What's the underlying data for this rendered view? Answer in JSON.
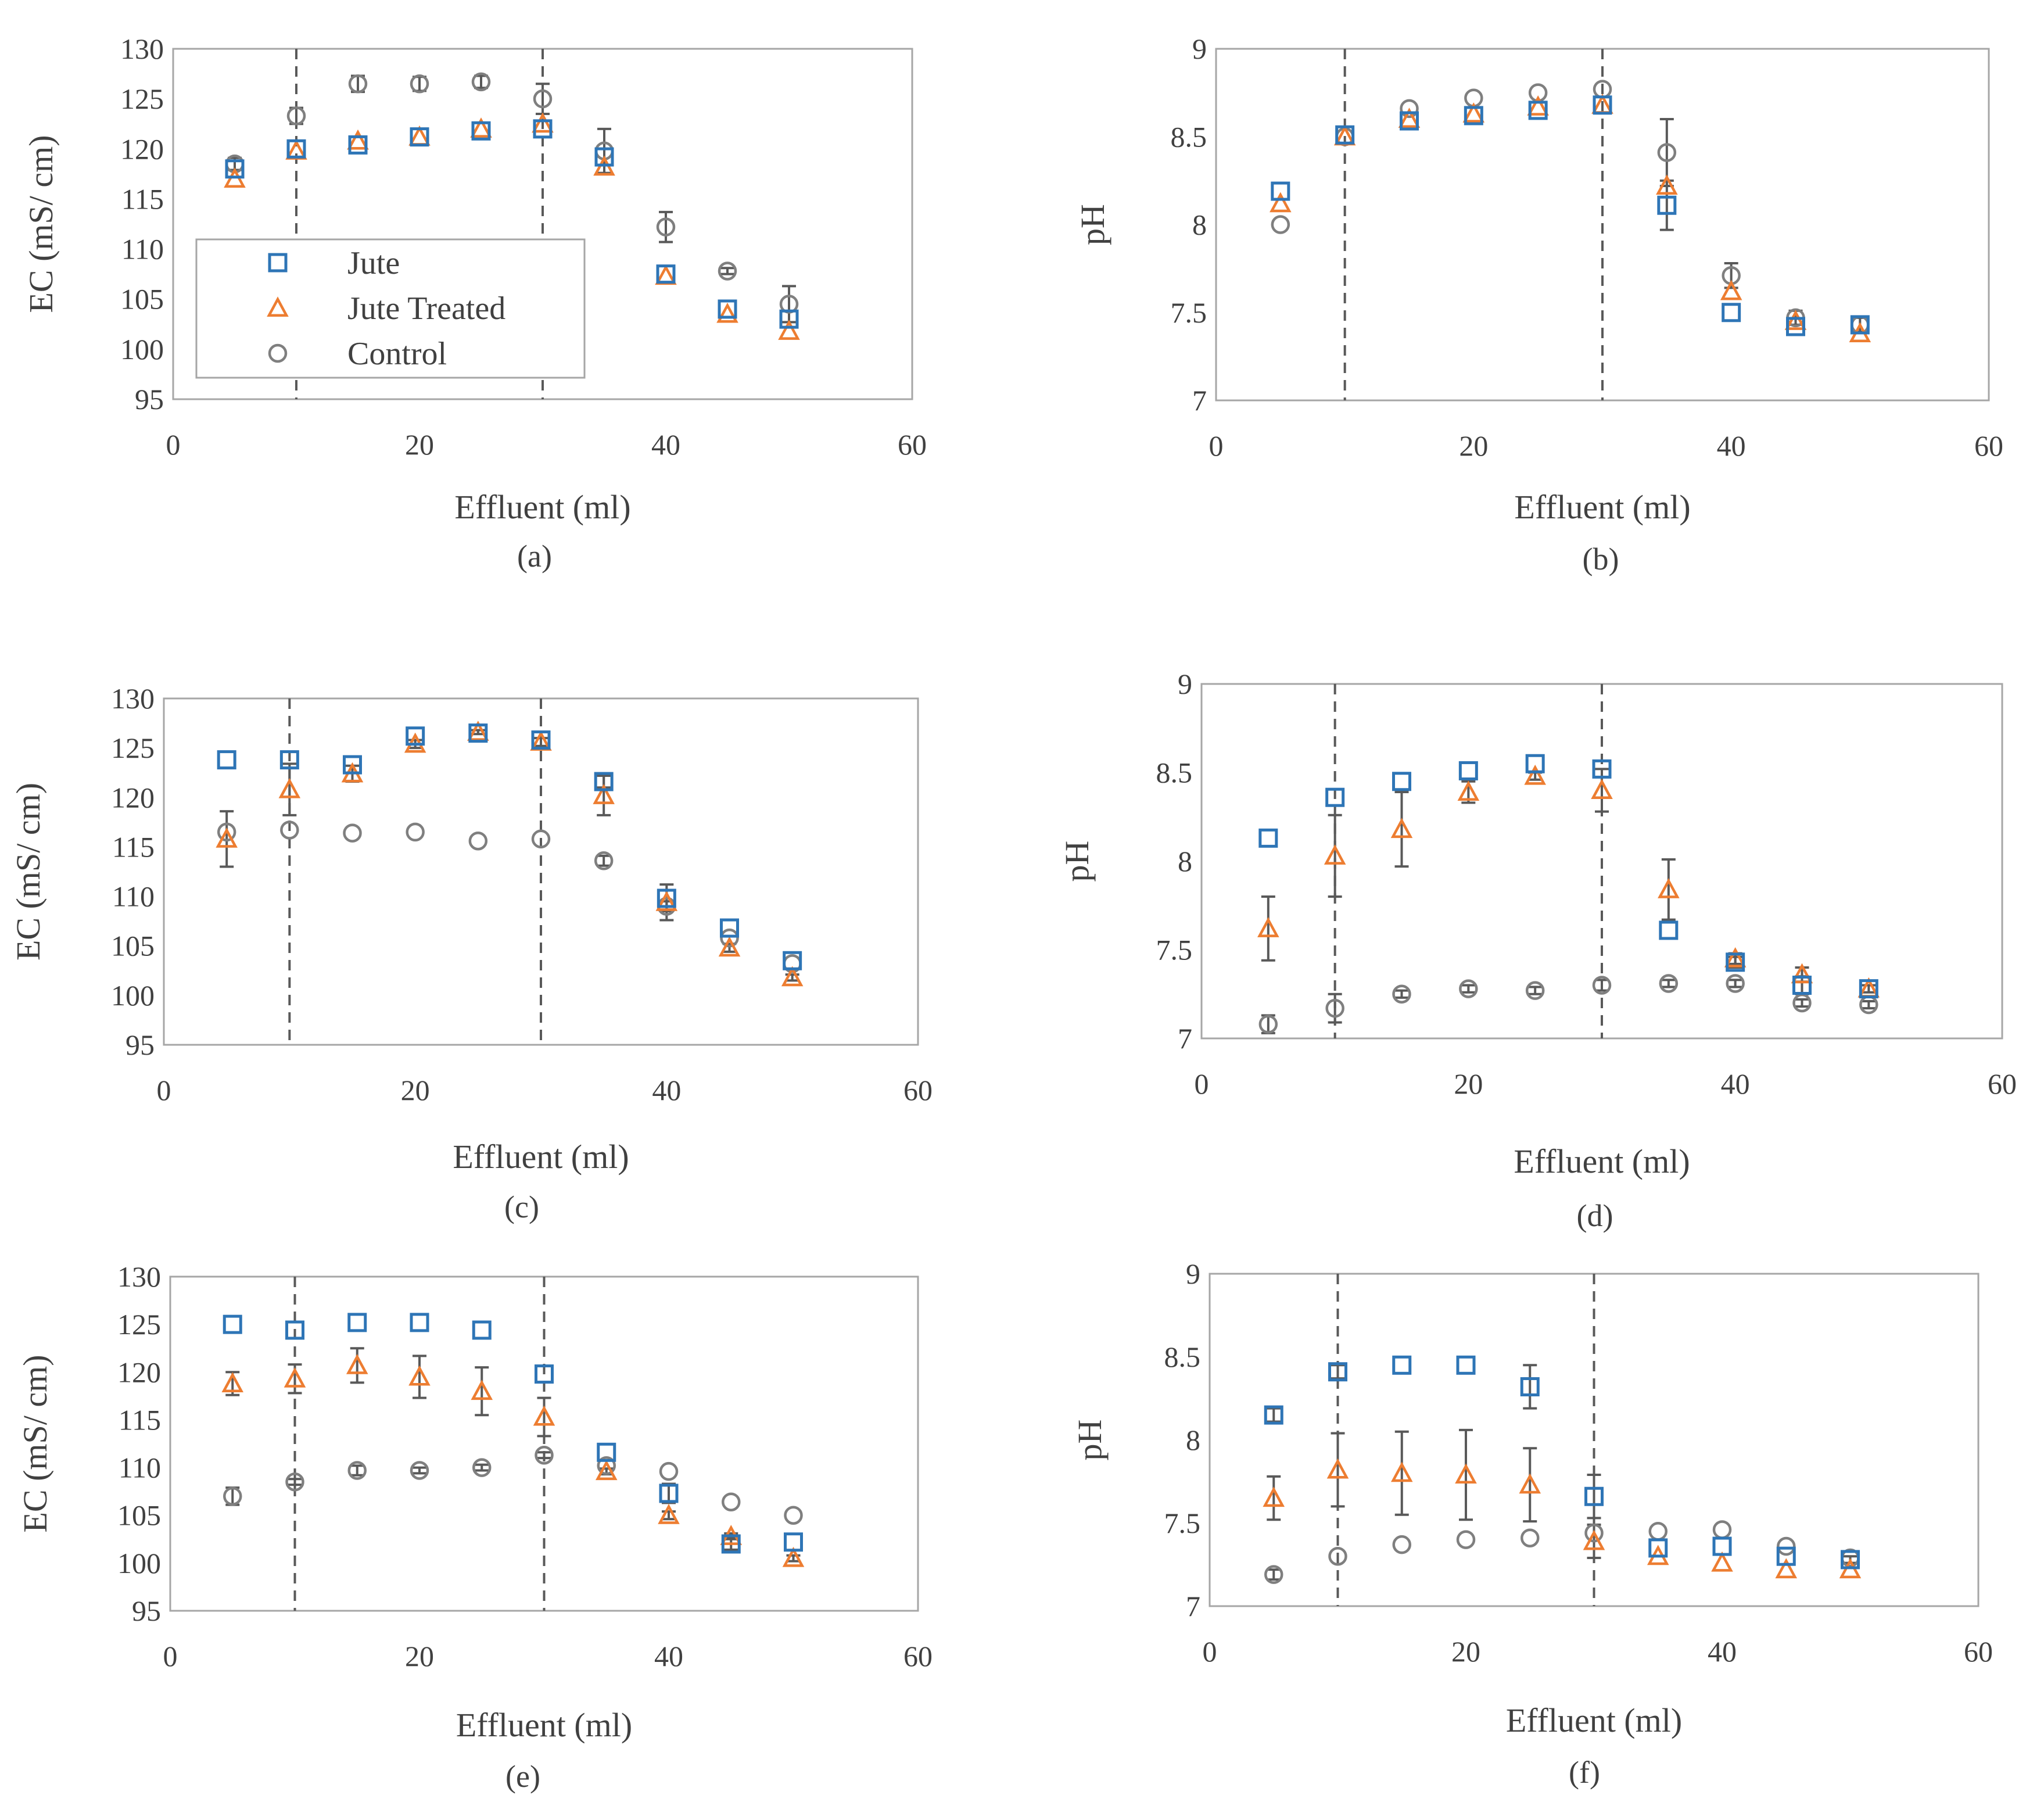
{
  "figure": {
    "captions": [
      "(a)",
      "(b)",
      "(c)",
      "(d)",
      "(e)",
      "(f)"
    ]
  },
  "colors": {
    "jute": "#2E75B6",
    "jute_treated": "#ED7D31",
    "control": "#7F7F7F",
    "axes": "#A6A6A6",
    "text": "#404040",
    "dashed": "#595959"
  },
  "legend": {
    "entries": [
      {
        "label": "Jute",
        "marker": "square"
      },
      {
        "label": "Jute Treated",
        "marker": "triangle"
      },
      {
        "label": "Control",
        "marker": "circle"
      }
    ]
  },
  "chart_data": [
    {
      "id": "a",
      "caption": "(a)",
      "type": "scatter",
      "xlabel": "Effluent (ml)",
      "ylabel": "EC (mS/ cm)",
      "xlim": [
        0,
        60
      ],
      "ylim": [
        95,
        130
      ],
      "xticks": [
        0,
        20,
        40,
        60
      ],
      "yticks": [
        95,
        100,
        105,
        110,
        115,
        120,
        125,
        130
      ],
      "ytick_labels": [
        "95",
        "100",
        "105",
        "110",
        "115",
        "120",
        "125",
        "130"
      ],
      "xtick_labels": [
        "0",
        "20",
        "40",
        "60"
      ],
      "vlines": [
        10,
        30
      ],
      "legend": true,
      "x": [
        5,
        10,
        15,
        20,
        25,
        30,
        35,
        40,
        45,
        50
      ],
      "series": [
        {
          "name": "Jute",
          "marker": "square",
          "values": [
            118,
            120,
            120.4,
            121.2,
            121.8,
            122,
            119.2,
            107.5,
            104,
            103
          ],
          "errors": [
            0,
            0,
            0,
            0,
            0,
            0,
            0,
            0,
            0,
            0
          ]
        },
        {
          "name": "Jute Treated",
          "marker": "triangle",
          "values": [
            117,
            119.8,
            120.8,
            121.2,
            122,
            122.5,
            118.2,
            107.3,
            103.5,
            101.8
          ],
          "errors": [
            0,
            0,
            0,
            0,
            0,
            0,
            0,
            0,
            0,
            0
          ]
        },
        {
          "name": "Control",
          "marker": "circle",
          "values": [
            118.5,
            123.3,
            126.5,
            126.5,
            126.7,
            125,
            119.8,
            112.2,
            107.8,
            104.5
          ],
          "errors": [
            0.6,
            0.8,
            0.8,
            0.7,
            0.6,
            1.5,
            2.2,
            1.5,
            0.3,
            1.8
          ]
        }
      ]
    },
    {
      "id": "b",
      "caption": "(b)",
      "type": "scatter",
      "xlabel": "Effluent (ml)",
      "ylabel": "pH",
      "xlim": [
        0,
        60
      ],
      "ylim": [
        7,
        9
      ],
      "xticks": [
        0,
        20,
        40,
        60
      ],
      "yticks": [
        7,
        7.5,
        8,
        8.5,
        9
      ],
      "ytick_labels": [
        "7",
        "7.5",
        "8",
        "8.5",
        "9"
      ],
      "xtick_labels": [
        "0",
        "20",
        "40",
        "60"
      ],
      "vlines": [
        10,
        30
      ],
      "legend": false,
      "x": [
        5,
        10,
        15,
        20,
        25,
        30,
        35,
        40,
        45,
        50
      ],
      "series": [
        {
          "name": "Jute",
          "marker": "square",
          "values": [
            8.19,
            8.51,
            8.59,
            8.62,
            8.65,
            8.68,
            8.11,
            7.5,
            7.42,
            7.43
          ],
          "errors": [
            0,
            0,
            0,
            0,
            0,
            0,
            0.14,
            0,
            0,
            0
          ]
        },
        {
          "name": "Jute Treated",
          "marker": "triangle",
          "values": [
            8.12,
            8.5,
            8.6,
            8.63,
            8.67,
            8.68,
            8.22,
            7.62,
            7.45,
            7.38
          ],
          "errors": [
            0,
            0,
            0,
            0,
            0,
            0,
            0,
            0,
            0,
            0
          ]
        },
        {
          "name": "Control",
          "marker": "circle",
          "values": [
            8,
            8.5,
            8.66,
            8.72,
            8.75,
            8.77,
            8.41,
            7.71,
            7.47,
            7.43
          ],
          "errors": [
            0,
            0,
            0,
            0,
            0,
            0,
            0.19,
            0.07,
            0.04,
            0.04
          ]
        }
      ]
    },
    {
      "id": "c",
      "caption": "(c)",
      "type": "scatter",
      "xlabel": "Effluent (ml)",
      "ylabel": "EC (mS/ cm)",
      "xlim": [
        0,
        60
      ],
      "ylim": [
        95,
        130
      ],
      "xticks": [
        0,
        20,
        40,
        60
      ],
      "yticks": [
        95,
        100,
        105,
        110,
        115,
        120,
        125,
        130
      ],
      "ytick_labels": [
        "95",
        "100",
        "105",
        "110",
        "115",
        "120",
        "125",
        "130"
      ],
      "xtick_labels": [
        "0",
        "20",
        "40",
        "60"
      ],
      "vlines": [
        10,
        30
      ],
      "legend": false,
      "x": [
        5,
        10,
        15,
        20,
        25,
        30,
        35,
        40,
        45,
        50
      ],
      "series": [
        {
          "name": "Jute",
          "marker": "square",
          "values": [
            123.8,
            123.8,
            123.3,
            126.2,
            126.5,
            125.8,
            121.6,
            109.8,
            106.8,
            103.5
          ],
          "errors": [
            0,
            0,
            0,
            0,
            0,
            0,
            0.6,
            0,
            0,
            0
          ]
        },
        {
          "name": "Jute Treated",
          "marker": "triangle",
          "values": [
            115.8,
            120.8,
            122.4,
            125.4,
            126.6,
            125.6,
            120.2,
            109.4,
            104.8,
            101.8
          ],
          "errors": [
            2.8,
            2.6,
            0.8,
            0.4,
            0.2,
            0.4,
            2.0,
            1.8,
            0.4,
            0.3
          ]
        },
        {
          "name": "Control",
          "marker": "circle",
          "values": [
            116.5,
            116.7,
            116.4,
            116.5,
            115.6,
            115.8,
            113.6,
            109.0,
            105.8,
            103.2
          ],
          "errors": [
            0,
            0,
            0,
            0,
            0,
            0,
            0.5,
            0.5,
            0,
            0
          ]
        }
      ]
    },
    {
      "id": "d",
      "caption": "(d)",
      "type": "scatter",
      "xlabel": "Effluent (ml)",
      "ylabel": "pH",
      "xlim": [
        0,
        60
      ],
      "ylim": [
        7,
        9
      ],
      "xticks": [
        0,
        20,
        40,
        60
      ],
      "yticks": [
        7,
        7.5,
        8,
        8.5,
        9
      ],
      "ytick_labels": [
        "7",
        "7.5",
        "8",
        "8.5",
        "9"
      ],
      "xtick_labels": [
        "0",
        "20",
        "40",
        "60"
      ],
      "vlines": [
        10,
        30
      ],
      "legend": false,
      "x": [
        5,
        10,
        15,
        20,
        25,
        30,
        35,
        40,
        45,
        50
      ],
      "series": [
        {
          "name": "Jute",
          "marker": "square",
          "values": [
            8.13,
            8.36,
            8.45,
            8.51,
            8.55,
            8.52,
            7.61,
            7.43,
            7.3,
            7.28
          ],
          "errors": [
            0,
            0,
            0,
            0,
            0,
            0,
            0,
            0.03,
            0.05,
            0
          ]
        },
        {
          "name": "Jute Treated",
          "marker": "triangle",
          "values": [
            7.62,
            8.03,
            8.18,
            8.39,
            8.48,
            8.4,
            7.84,
            7.45,
            7.36,
            7.28
          ],
          "errors": [
            0.18,
            0.23,
            0.21,
            0.06,
            0.02,
            0.12,
            0.17,
            0.03,
            0.04,
            0.02
          ]
        },
        {
          "name": "Control",
          "marker": "circle",
          "values": [
            7.08,
            7.17,
            7.25,
            7.28,
            7.27,
            7.3,
            7.31,
            7.31,
            7.2,
            7.19
          ],
          "errors": [
            0.05,
            0.08,
            0.02,
            0.02,
            0.02,
            0.03,
            0.02,
            0.02,
            0.02,
            0.02
          ]
        }
      ]
    },
    {
      "id": "e",
      "caption": "(e)",
      "type": "scatter",
      "xlabel": "Effluent (ml)",
      "ylabel": "EC (mS/ cm)",
      "xlim": [
        0,
        60
      ],
      "ylim": [
        95,
        130
      ],
      "xticks": [
        0,
        20,
        40,
        60
      ],
      "yticks": [
        95,
        100,
        105,
        110,
        115,
        120,
        125,
        130
      ],
      "ytick_labels": [
        "95",
        "100",
        "105",
        "110",
        "115",
        "120",
        "125",
        "130"
      ],
      "xtick_labels": [
        "0",
        "20",
        "40",
        "60"
      ],
      "vlines": [
        10,
        30
      ],
      "legend": false,
      "x": [
        5,
        10,
        15,
        20,
        25,
        30,
        35,
        40,
        45,
        50
      ],
      "series": [
        {
          "name": "Jute",
          "marker": "square",
          "values": [
            125,
            124.4,
            125.2,
            125.2,
            124.4,
            119.8,
            111.6,
            107.3,
            102,
            102.2
          ],
          "errors": [
            0,
            0,
            0,
            0,
            0,
            0,
            0,
            1.0,
            0.6,
            0
          ]
        },
        {
          "name": "Jute Treated",
          "marker": "triangle",
          "values": [
            118.8,
            119.3,
            120.7,
            119.5,
            118,
            115.3,
            109.6,
            105,
            102.8,
            100.5
          ],
          "errors": [
            1.2,
            1.5,
            1.8,
            2.2,
            2.5,
            2.0,
            0.3,
            0.4,
            0.3,
            0.3
          ]
        },
        {
          "name": "Control",
          "marker": "circle",
          "values": [
            107,
            108.5,
            109.7,
            109.7,
            110,
            111.3,
            110.2,
            109.6,
            106.4,
            105
          ],
          "errors": [
            0.9,
            0.3,
            0.5,
            0.3,
            0.3,
            0.3,
            0,
            0,
            0,
            0
          ]
        }
      ]
    },
    {
      "id": "f",
      "caption": "(f)",
      "type": "scatter",
      "xlabel": "Effluent (ml)",
      "ylabel": "pH",
      "xlim": [
        0,
        60
      ],
      "ylim": [
        7,
        9
      ],
      "xticks": [
        0,
        20,
        40,
        60
      ],
      "yticks": [
        7,
        7.5,
        8,
        8.5,
        9
      ],
      "ytick_labels": [
        "7",
        "7.5",
        "8",
        "8.5",
        "9"
      ],
      "xtick_labels": [
        "0",
        "20",
        "40",
        "60"
      ],
      "vlines": [
        10,
        30
      ],
      "legend": false,
      "x": [
        5,
        10,
        15,
        20,
        25,
        30,
        35,
        40,
        45,
        50
      ],
      "series": [
        {
          "name": "Jute",
          "marker": "square",
          "values": [
            8.15,
            8.41,
            8.45,
            8.45,
            8.32,
            7.66,
            7.35,
            7.36,
            7.3,
            7.28
          ],
          "errors": [
            0.04,
            0.04,
            0,
            0,
            0.13,
            0.13,
            0,
            0,
            0,
            0.02
          ]
        },
        {
          "name": "Jute Treated",
          "marker": "triangle",
          "values": [
            7.65,
            7.82,
            7.8,
            7.79,
            7.73,
            7.39,
            7.3,
            7.26,
            7.22,
            7.22
          ],
          "errors": [
            0.13,
            0.22,
            0.25,
            0.27,
            0.22,
            0.1,
            0,
            0,
            0,
            0
          ]
        },
        {
          "name": "Control",
          "marker": "circle",
          "values": [
            7.19,
            7.3,
            7.37,
            7.4,
            7.41,
            7.44,
            7.45,
            7.46,
            7.36,
            7.29
          ],
          "errors": [
            0.03,
            0,
            0,
            0,
            0,
            0,
            0,
            0,
            0,
            0
          ]
        }
      ]
    }
  ]
}
